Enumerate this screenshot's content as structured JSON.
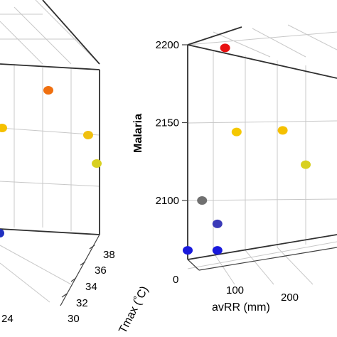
{
  "chart_data": [
    {
      "type": "scatter",
      "title": "",
      "projection": "3d",
      "axes": {
        "y_tick_labels": [
          "38",
          "36",
          "34",
          "32",
          "30"
        ],
        "x_tick_labels": [
          "24"
        ],
        "y_label": "Tmax (˚C)"
      },
      "points_visible": [
        {
          "color": "#f07010"
        },
        {
          "color": "#f5c000"
        },
        {
          "color": "#f0c010"
        },
        {
          "color": "#d8d020"
        },
        {
          "color": "#2030c0"
        }
      ]
    },
    {
      "type": "scatter",
      "title": "",
      "projection": "3d",
      "zlabel": "Malaria",
      "xlabel": "avRR (mm)",
      "z_ticks": [
        "2200",
        "2150",
        "2100"
      ],
      "x_ticks": [
        "0",
        "100",
        "200"
      ],
      "zlim": [
        2065,
        2205
      ],
      "xlim": [
        0,
        250
      ],
      "points": [
        {
          "avRR": 0,
          "malaria": 2068,
          "color": "#1a1adc"
        },
        {
          "avRR": 35,
          "malaria": 2068,
          "color": "#1a1adc"
        },
        {
          "avRR": 35,
          "malaria": 2085,
          "color": "#3a3ab8"
        },
        {
          "avRR": 15,
          "malaria": 2100,
          "color": "#707070"
        },
        {
          "avRR": 45,
          "malaria": 2198,
          "color": "#e81010"
        },
        {
          "avRR": 60,
          "malaria": 2144,
          "color": "#f5c800"
        },
        {
          "avRR": 120,
          "malaria": 2145,
          "color": "#f5c000"
        },
        {
          "avRR": 150,
          "malaria": 2123,
          "color": "#d8d020"
        }
      ]
    }
  ]
}
